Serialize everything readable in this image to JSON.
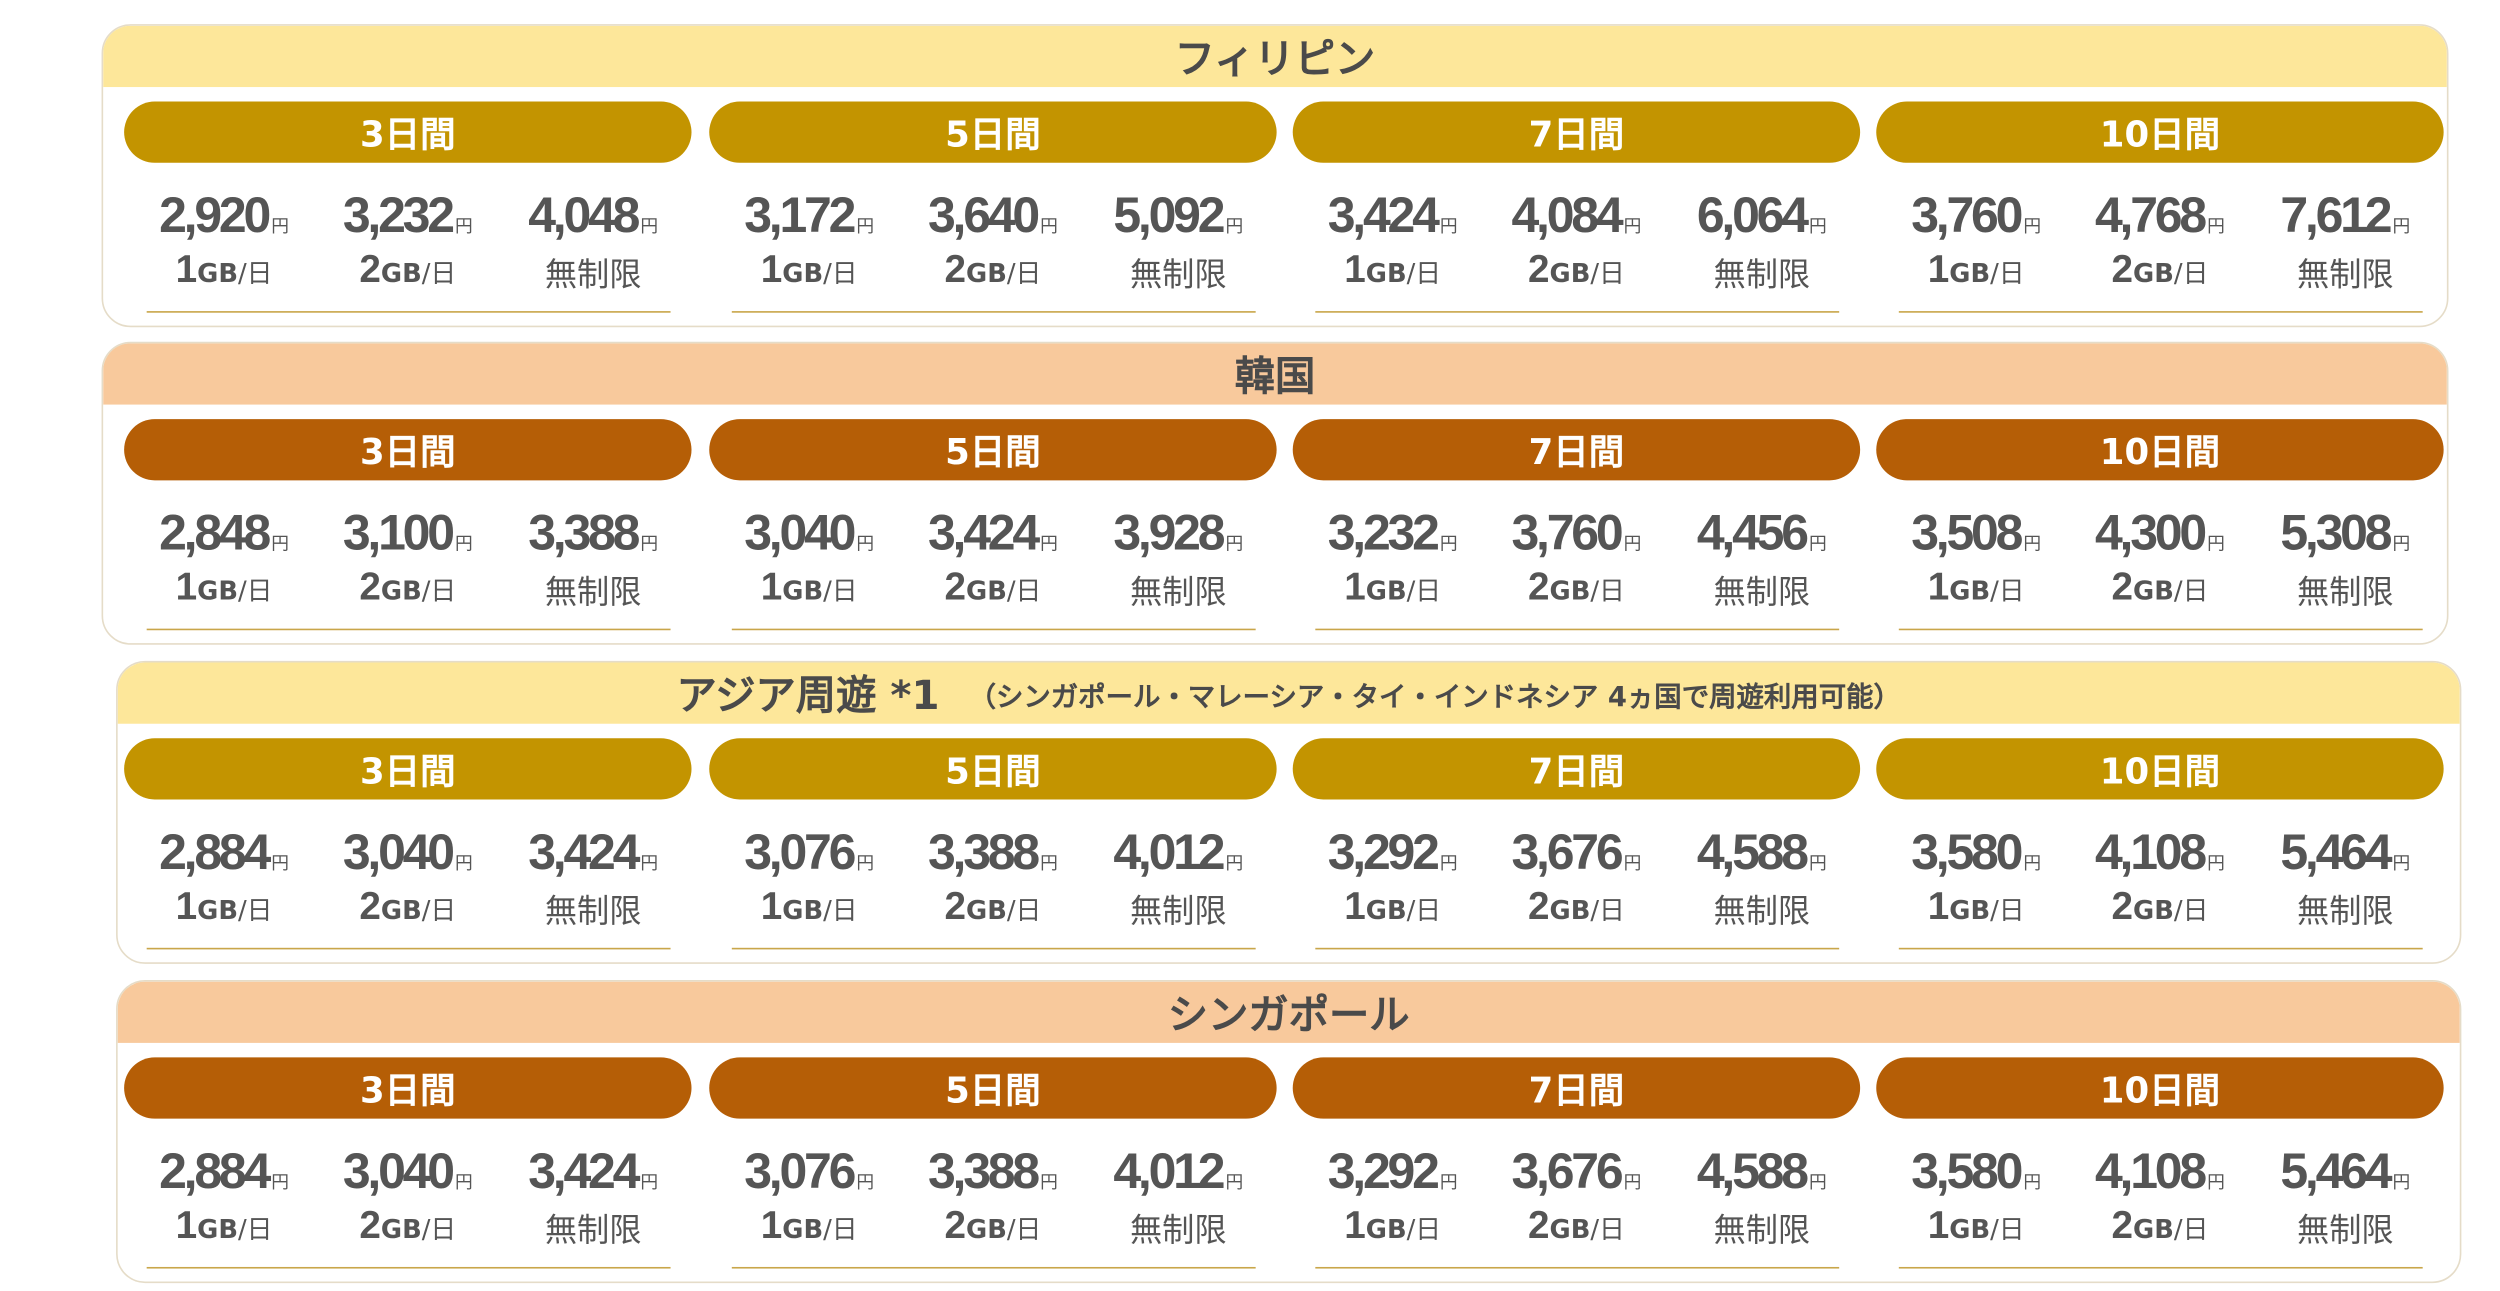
{
  "currency": "円",
  "sections": [
    {
      "title": "フィリピン",
      "header_color": "#fde79a",
      "pill_color": "#c39400",
      "periods": [
        {
          "label": "3日間",
          "plans": [
            {
              "price": "2,920",
              "size": "1",
              "unit": "GB",
              "per": "/日"
            },
            {
              "price": "3,232",
              "size": "2",
              "unit": "GB",
              "per": "/日"
            },
            {
              "price": "4,048",
              "label": "無制限"
            }
          ]
        },
        {
          "label": "5日間",
          "plans": [
            {
              "price": "3,172",
              "size": "1",
              "unit": "GB",
              "per": "/日"
            },
            {
              "price": "3,640",
              "size": "2",
              "unit": "GB",
              "per": "/日"
            },
            {
              "price": "5,092",
              "label": "無制限"
            }
          ]
        },
        {
          "label": "7日間",
          "plans": [
            {
              "price": "3,424",
              "size": "1",
              "unit": "GB",
              "per": "/日"
            },
            {
              "price": "4,084",
              "size": "2",
              "unit": "GB",
              "per": "/日"
            },
            {
              "price": "6,064",
              "label": "無制限"
            }
          ]
        },
        {
          "label": "10日間",
          "plans": [
            {
              "price": "3,760",
              "size": "1",
              "unit": "GB",
              "per": "/日"
            },
            {
              "price": "4,768",
              "size": "2",
              "unit": "GB",
              "per": "/日"
            },
            {
              "price": "7,612",
              "label": "無制限"
            }
          ]
        }
      ]
    },
    {
      "title": "韓国",
      "header_color": "#f8c99c",
      "pill_color": "#b55e06",
      "periods": [
        {
          "label": "3日間",
          "plans": [
            {
              "price": "2,848",
              "size": "1",
              "unit": "GB",
              "per": "/日"
            },
            {
              "price": "3,100",
              "size": "2",
              "unit": "GB",
              "per": "/日"
            },
            {
              "price": "3,388",
              "label": "無制限"
            }
          ]
        },
        {
          "label": "5日間",
          "plans": [
            {
              "price": "3,040",
              "size": "1",
              "unit": "GB",
              "per": "/日"
            },
            {
              "price": "3,424",
              "size": "2",
              "unit": "GB",
              "per": "/日"
            },
            {
              "price": "3,928",
              "label": "無制限"
            }
          ]
        },
        {
          "label": "7日間",
          "plans": [
            {
              "price": "3,232",
              "size": "1",
              "unit": "GB",
              "per": "/日"
            },
            {
              "price": "3,760",
              "size": "2",
              "unit": "GB",
              "per": "/日"
            },
            {
              "price": "4,456",
              "label": "無制限"
            }
          ]
        },
        {
          "label": "10日間",
          "plans": [
            {
              "price": "3,508",
              "size": "1",
              "unit": "GB",
              "per": "/日"
            },
            {
              "price": "4,300",
              "size": "2",
              "unit": "GB",
              "per": "/日"
            },
            {
              "price": "5,308",
              "label": "無制限"
            }
          ]
        }
      ]
    },
    {
      "title": "アジア周遊 *1",
      "note": "（シンガポール・マレーシア・タイ・インドネシア 4ヵ国で周遊利用可能）",
      "header_color": "#fde79a",
      "pill_color": "#c39400",
      "periods": [
        {
          "label": "3日間",
          "plans": [
            {
              "price": "2,884",
              "size": "1",
              "unit": "GB",
              "per": "/日"
            },
            {
              "price": "3,040",
              "size": "2",
              "unit": "GB",
              "per": "/日"
            },
            {
              "price": "3,424",
              "label": "無制限"
            }
          ]
        },
        {
          "label": "5日間",
          "plans": [
            {
              "price": "3,076",
              "size": "1",
              "unit": "GB",
              "per": "/日"
            },
            {
              "price": "3,388",
              "size": "2",
              "unit": "GB",
              "per": "/日"
            },
            {
              "price": "4,012",
              "label": "無制限"
            }
          ]
        },
        {
          "label": "7日間",
          "plans": [
            {
              "price": "3,292",
              "size": "1",
              "unit": "GB",
              "per": "/日"
            },
            {
              "price": "3,676",
              "size": "2",
              "unit": "GB",
              "per": "/日"
            },
            {
              "price": "4,588",
              "label": "無制限"
            }
          ]
        },
        {
          "label": "10日間",
          "plans": [
            {
              "price": "3,580",
              "size": "1",
              "unit": "GB",
              "per": "/日"
            },
            {
              "price": "4,108",
              "size": "2",
              "unit": "GB",
              "per": "/日"
            },
            {
              "price": "5,464",
              "label": "無制限"
            }
          ]
        }
      ]
    },
    {
      "title": "シンガポール",
      "header_color": "#f8c99c",
      "pill_color": "#b55e06",
      "periods": [
        {
          "label": "3日間",
          "plans": [
            {
              "price": "2,884",
              "size": "1",
              "unit": "GB",
              "per": "/日"
            },
            {
              "price": "3,040",
              "size": "2",
              "unit": "GB",
              "per": "/日"
            },
            {
              "price": "3,424",
              "label": "無制限"
            }
          ]
        },
        {
          "label": "5日間",
          "plans": [
            {
              "price": "3,076",
              "size": "1",
              "unit": "GB",
              "per": "/日"
            },
            {
              "price": "3,388",
              "size": "2",
              "unit": "GB",
              "per": "/日"
            },
            {
              "price": "4,012",
              "label": "無制限"
            }
          ]
        },
        {
          "label": "7日間",
          "plans": [
            {
              "price": "3,292",
              "size": "1",
              "unit": "GB",
              "per": "/日"
            },
            {
              "price": "3,676",
              "size": "2",
              "unit": "GB",
              "per": "/日"
            },
            {
              "price": "4,588",
              "label": "無制限"
            }
          ]
        },
        {
          "label": "10日間",
          "plans": [
            {
              "price": "3,580",
              "size": "1",
              "unit": "GB",
              "per": "/日"
            },
            {
              "price": "4,108",
              "size": "2",
              "unit": "GB",
              "per": "/日"
            },
            {
              "price": "5,464",
              "label": "無制限"
            }
          ]
        }
      ]
    }
  ]
}
